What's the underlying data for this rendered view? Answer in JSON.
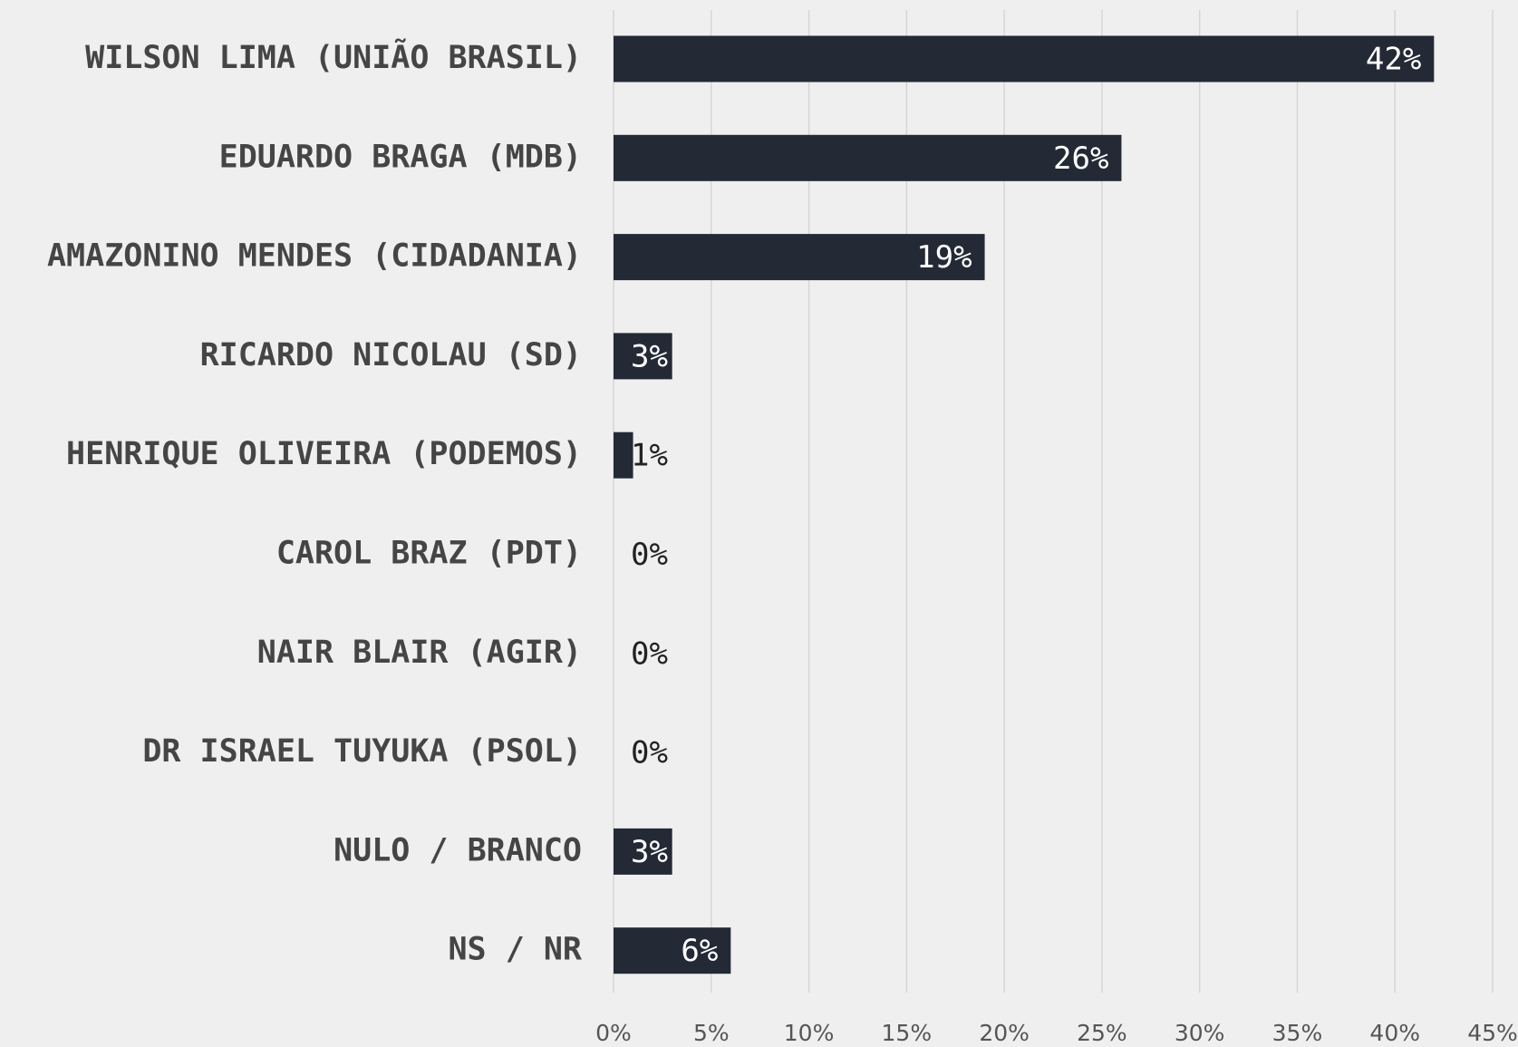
{
  "chart_data": {
    "type": "bar",
    "orientation": "horizontal",
    "categories": [
      "WILSON LIMA (UNIÃO BRASIL)",
      "EDUARDO BRAGA (MDB)",
      "AMAZONINO MENDES (CIDADANIA)",
      "RICARDO NICOLAU (SD)",
      "HENRIQUE OLIVEIRA (PODEMOS)",
      "CAROL BRAZ (PDT)",
      "NAIR BLAIR (AGIR)",
      "DR ISRAEL TUYUKA (PSOL)",
      "NULO / BRANCO",
      "NS / NR"
    ],
    "values": [
      42,
      26,
      19,
      3,
      1,
      0,
      0,
      0,
      3,
      6
    ],
    "value_labels": [
      "42%",
      "26%",
      "19%",
      "3%",
      "1%",
      "0%",
      "0%",
      "0%",
      "3%",
      "6%"
    ],
    "color": "#232a36",
    "xlim": [
      0,
      45
    ],
    "xticks": [
      {
        "value": 0,
        "label": "0%"
      },
      {
        "value": 5,
        "label": "5%"
      },
      {
        "value": 10,
        "label": "10%"
      },
      {
        "value": 15,
        "label": "15%"
      },
      {
        "value": 20,
        "label": "20%"
      },
      {
        "value": 25,
        "label": "25%"
      },
      {
        "value": 30,
        "label": "30%"
      },
      {
        "value": 35,
        "label": "35%"
      },
      {
        "value": 40,
        "label": "40%"
      },
      {
        "value": 45,
        "label": "45%"
      }
    ],
    "grid": true
  }
}
